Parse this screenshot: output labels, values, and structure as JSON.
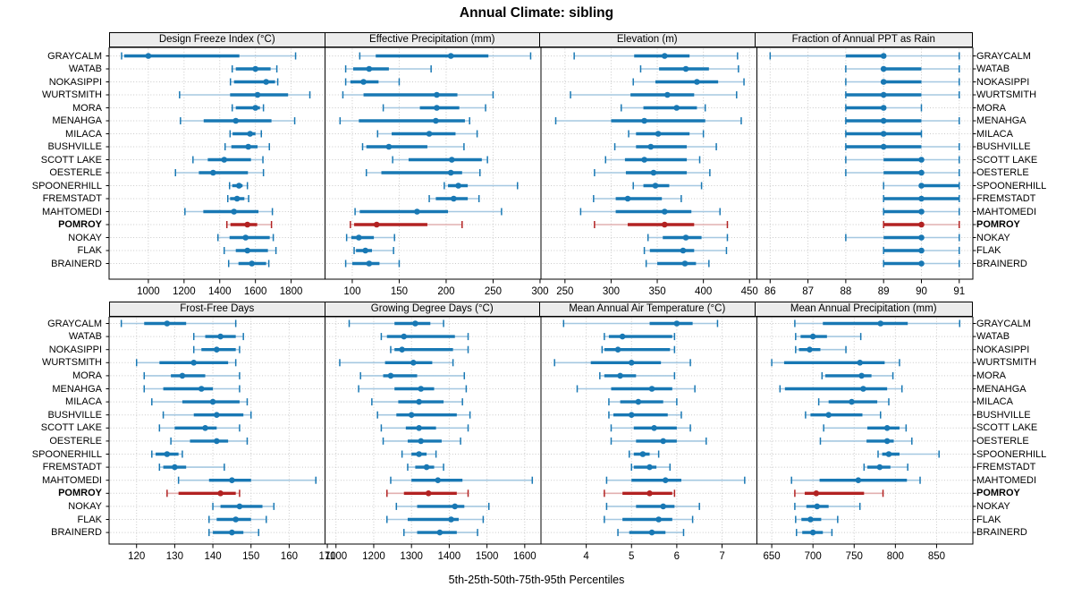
{
  "title": "Annual Climate: sibling",
  "caption": "5th-25th-50th-75th-95th Percentiles",
  "highlight_site": "POMROY",
  "percentile_labels": [
    "5th",
    "25th",
    "50th",
    "75th",
    "95th"
  ],
  "sites": [
    "GRAYCALM",
    "WATAB",
    "NOKASIPPI",
    "WURTSMITH",
    "MORA",
    "MENAHGA",
    "MILACA",
    "BUSHVILLE",
    "SCOTT LAKE",
    "OESTERLE",
    "SPOONERHILL",
    "FREMSTADT",
    "MAHTOMEDI",
    "POMROY",
    "NOKAY",
    "FLAK",
    "BRAINERD"
  ],
  "colors": {
    "blue": "#1878b4",
    "blue_light": "#a5c8e1",
    "red": "#b22222",
    "red_light": "#e2b0b0",
    "strip_bg": "#ececec",
    "grid": "#c9c9c9",
    "border": "#000000"
  },
  "chart_data": {
    "type": "interval-dotplot",
    "layout": "2 rows x 4 columns of panels, shared site rows",
    "note": "values per site are [5th,25th,50th,75th,95th] percentiles",
    "panels": [
      {
        "title": "Design Freeze Index (°C)",
        "xlim": [
          780,
          1990
        ],
        "ticks": [
          1000,
          1200,
          1400,
          1600,
          1800
        ],
        "values": [
          [
            850,
            865,
            1000,
            1510,
            1825
          ],
          [
            1470,
            1490,
            1600,
            1685,
            1720
          ],
          [
            1460,
            1480,
            1660,
            1710,
            1725
          ],
          [
            1175,
            1458,
            1612,
            1783,
            1905
          ],
          [
            1470,
            1490,
            1600,
            1625,
            1645
          ],
          [
            1180,
            1310,
            1490,
            1690,
            1820
          ],
          [
            1458,
            1472,
            1570,
            1600,
            1633
          ],
          [
            1430,
            1465,
            1560,
            1612,
            1678
          ],
          [
            1250,
            1333,
            1425,
            1575,
            1642
          ],
          [
            1152,
            1283,
            1363,
            1558,
            1645
          ],
          [
            1455,
            1470,
            1508,
            1528,
            1555
          ],
          [
            1445,
            1458,
            1497,
            1538,
            1562
          ],
          [
            1205,
            1308,
            1480,
            1617,
            1695
          ],
          [
            1440,
            1460,
            1555,
            1610,
            1690
          ],
          [
            1390,
            1455,
            1545,
            1680,
            1700
          ],
          [
            1425,
            1490,
            1555,
            1670,
            1715
          ],
          [
            1450,
            1505,
            1580,
            1660,
            1675
          ]
        ]
      },
      {
        "title": "Effective Precipitation (mm)",
        "xlim": [
          71,
          301
        ],
        "ticks": [
          100,
          150,
          200,
          250,
          300
        ],
        "values": [
          [
            108,
            125,
            205,
            245,
            290
          ],
          [
            93,
            101,
            118,
            139,
            184
          ],
          [
            93,
            98,
            112,
            128,
            150
          ],
          [
            90,
            112,
            190,
            212,
            250
          ],
          [
            133,
            172,
            190,
            214,
            242
          ],
          [
            87,
            107,
            189,
            220,
            225
          ],
          [
            127,
            142,
            182,
            210,
            233
          ],
          [
            111,
            115,
            139,
            180,
            219
          ],
          [
            143,
            160,
            206,
            238,
            244
          ],
          [
            115,
            131,
            205,
            217,
            236
          ],
          [
            198,
            202,
            213,
            223,
            276
          ],
          [
            182,
            189,
            208,
            223,
            235
          ],
          [
            103,
            108,
            169,
            202,
            259
          ],
          [
            98,
            102,
            126,
            180,
            217
          ],
          [
            94,
            99,
            107,
            123,
            145
          ],
          [
            102,
            104,
            114,
            121,
            144
          ],
          [
            93,
            100,
            118,
            129,
            150
          ]
        ]
      },
      {
        "title": "Elevation (m)",
        "xlim": [
          224,
          458
        ],
        "ticks": [
          250,
          300,
          350,
          400,
          450
        ],
        "values": [
          [
            260,
            325,
            358,
            385,
            437
          ],
          [
            332,
            352,
            381,
            406,
            438
          ],
          [
            324,
            348,
            393,
            416,
            444
          ],
          [
            256,
            321,
            361,
            390,
            436
          ],
          [
            311,
            335,
            371,
            393,
            402
          ],
          [
            240,
            300,
            336,
            402,
            441
          ],
          [
            319,
            327,
            351,
            385,
            400
          ],
          [
            304,
            327,
            343,
            382,
            414
          ],
          [
            294,
            315,
            336,
            382,
            396
          ],
          [
            282,
            316,
            346,
            382,
            407
          ],
          [
            324,
            335,
            348,
            363,
            398
          ],
          [
            281,
            305,
            318,
            355,
            376
          ],
          [
            267,
            305,
            358,
            387,
            418
          ],
          [
            282,
            318,
            358,
            390,
            426
          ],
          [
            340,
            356,
            381,
            398,
            426
          ],
          [
            336,
            342,
            378,
            390,
            425
          ],
          [
            338,
            350,
            380,
            392,
            406
          ]
        ]
      },
      {
        "title": "Fraction of Annual PPT as Rain",
        "xlim": [
          85.65,
          91.36
        ],
        "ticks": [
          86,
          87,
          88,
          89,
          90,
          91
        ],
        "values": [
          [
            86,
            88,
            89,
            89,
            91
          ],
          [
            88,
            89,
            89,
            90,
            91
          ],
          [
            88,
            89,
            89,
            90,
            91
          ],
          [
            88,
            88,
            89,
            90,
            91
          ],
          [
            88,
            88,
            89,
            89,
            90
          ],
          [
            88,
            88,
            89,
            90,
            91
          ],
          [
            88,
            88,
            89,
            90,
            90
          ],
          [
            88,
            88,
            89,
            90,
            91
          ],
          [
            88,
            89,
            90,
            90,
            91
          ],
          [
            88,
            89,
            90,
            90,
            91
          ],
          [
            89,
            90,
            90,
            91,
            91
          ],
          [
            89,
            89,
            90,
            91,
            91
          ],
          [
            89,
            89,
            90,
            90,
            91
          ],
          [
            89,
            89,
            90,
            90,
            91
          ],
          [
            88,
            89,
            90,
            90,
            91
          ],
          [
            89,
            89,
            90,
            90,
            91
          ],
          [
            89,
            89,
            90,
            90,
            91
          ]
        ]
      },
      {
        "title": "Frost-Free Days",
        "xlim": [
          112.8,
          169.4
        ],
        "ticks": [
          120,
          130,
          140,
          150,
          160,
          170
        ],
        "values": [
          [
            116,
            122,
            128,
            133,
            146
          ],
          [
            135,
            138,
            142,
            146,
            148
          ],
          [
            135,
            137,
            141,
            146,
            147
          ],
          [
            120,
            126,
            135,
            144,
            146
          ],
          [
            122,
            129,
            132,
            138,
            147
          ],
          [
            122,
            127,
            137,
            140,
            147
          ],
          [
            124,
            132,
            140,
            147,
            149
          ],
          [
            127,
            135,
            141,
            148,
            150
          ],
          [
            126,
            130,
            138,
            141,
            147
          ],
          [
            129,
            134,
            141,
            144,
            149
          ],
          [
            124,
            125,
            128,
            131,
            132
          ],
          [
            126,
            127,
            130,
            133,
            143
          ],
          [
            131,
            139,
            145,
            150,
            167
          ],
          [
            128,
            131,
            142,
            146,
            147
          ],
          [
            140,
            142,
            147,
            153,
            156
          ],
          [
            139,
            141,
            146,
            150,
            154
          ],
          [
            139,
            140,
            145,
            148,
            152
          ]
        ]
      },
      {
        "title": "Growing Degree Days (°C)",
        "xlim": [
          1071,
          1643
        ],
        "ticks": [
          1100,
          1200,
          1300,
          1400,
          1500,
          1600
        ],
        "values": [
          [
            1135,
            1255,
            1310,
            1350,
            1385
          ],
          [
            1220,
            1235,
            1280,
            1415,
            1450
          ],
          [
            1245,
            1255,
            1275,
            1410,
            1450
          ],
          [
            1110,
            1230,
            1305,
            1355,
            1410
          ],
          [
            1165,
            1225,
            1245,
            1315,
            1440
          ],
          [
            1160,
            1255,
            1325,
            1360,
            1445
          ],
          [
            1195,
            1265,
            1320,
            1385,
            1435
          ],
          [
            1210,
            1260,
            1300,
            1420,
            1455
          ],
          [
            1220,
            1285,
            1320,
            1365,
            1450
          ],
          [
            1225,
            1290,
            1325,
            1380,
            1430
          ],
          [
            1275,
            1300,
            1320,
            1340,
            1365
          ],
          [
            1290,
            1310,
            1340,
            1360,
            1385
          ],
          [
            1245,
            1300,
            1370,
            1435,
            1620
          ],
          [
            1235,
            1280,
            1345,
            1420,
            1450
          ],
          [
            1260,
            1315,
            1415,
            1440,
            1505
          ],
          [
            1235,
            1290,
            1405,
            1425,
            1490
          ],
          [
            1280,
            1315,
            1375,
            1420,
            1475
          ]
        ]
      },
      {
        "title": "Mean Annual Air Temperature (°C)",
        "xlim": [
          3.0,
          7.77
        ],
        "ticks": [
          4,
          5,
          6,
          7
        ],
        "values": [
          [
            3.5,
            5.4,
            6.0,
            6.35,
            6.9
          ],
          [
            4.4,
            4.5,
            4.8,
            5.9,
            5.95
          ],
          [
            4.35,
            4.4,
            4.7,
            5.85,
            5.95
          ],
          [
            3.3,
            4.1,
            5.0,
            5.65,
            6.3
          ],
          [
            4.3,
            4.4,
            4.75,
            5.1,
            5.95
          ],
          [
            3.8,
            4.55,
            5.45,
            5.9,
            6.4
          ],
          [
            4.5,
            4.75,
            5.15,
            5.7,
            6.0
          ],
          [
            4.5,
            4.6,
            5.0,
            5.8,
            6.1
          ],
          [
            4.55,
            5.05,
            5.5,
            6.0,
            6.3
          ],
          [
            4.55,
            5.1,
            5.7,
            6.0,
            6.65
          ],
          [
            4.95,
            5.05,
            5.25,
            5.4,
            5.6
          ],
          [
            5.0,
            5.05,
            5.4,
            5.55,
            5.85
          ],
          [
            4.45,
            5.0,
            5.75,
            6.1,
            7.5
          ],
          [
            4.4,
            4.8,
            5.4,
            5.9,
            5.95
          ],
          [
            4.45,
            5.1,
            5.7,
            5.95,
            6.5
          ],
          [
            4.4,
            4.8,
            5.6,
            5.9,
            6.35
          ],
          [
            4.7,
            4.95,
            5.45,
            5.75,
            6.15
          ]
        ]
      },
      {
        "title": "Mean Annual Precipitation (mm)",
        "xlim": [
          632,
          894
        ],
        "ticks": [
          650,
          700,
          750,
          800,
          850
        ],
        "values": [
          [
            678,
            712,
            782,
            815,
            878
          ],
          [
            679,
            685,
            700,
            717,
            758
          ],
          [
            679,
            683,
            696,
            709,
            740
          ],
          [
            650,
            665,
            757,
            787,
            805
          ],
          [
            711,
            715,
            759,
            771,
            797
          ],
          [
            660,
            666,
            761,
            790,
            808
          ],
          [
            707,
            719,
            747,
            778,
            792
          ],
          [
            691,
            697,
            719,
            760,
            782
          ],
          [
            713,
            766,
            790,
            805,
            813
          ],
          [
            709,
            765,
            790,
            798,
            820
          ],
          [
            779,
            784,
            792,
            805,
            853
          ],
          [
            762,
            766,
            781,
            794,
            815
          ],
          [
            674,
            708,
            755,
            814,
            830
          ],
          [
            678,
            690,
            704,
            762,
            785
          ],
          [
            678,
            692,
            705,
            719,
            757
          ],
          [
            679,
            686,
            697,
            710,
            730
          ],
          [
            680,
            687,
            700,
            712,
            723
          ]
        ]
      }
    ]
  }
}
